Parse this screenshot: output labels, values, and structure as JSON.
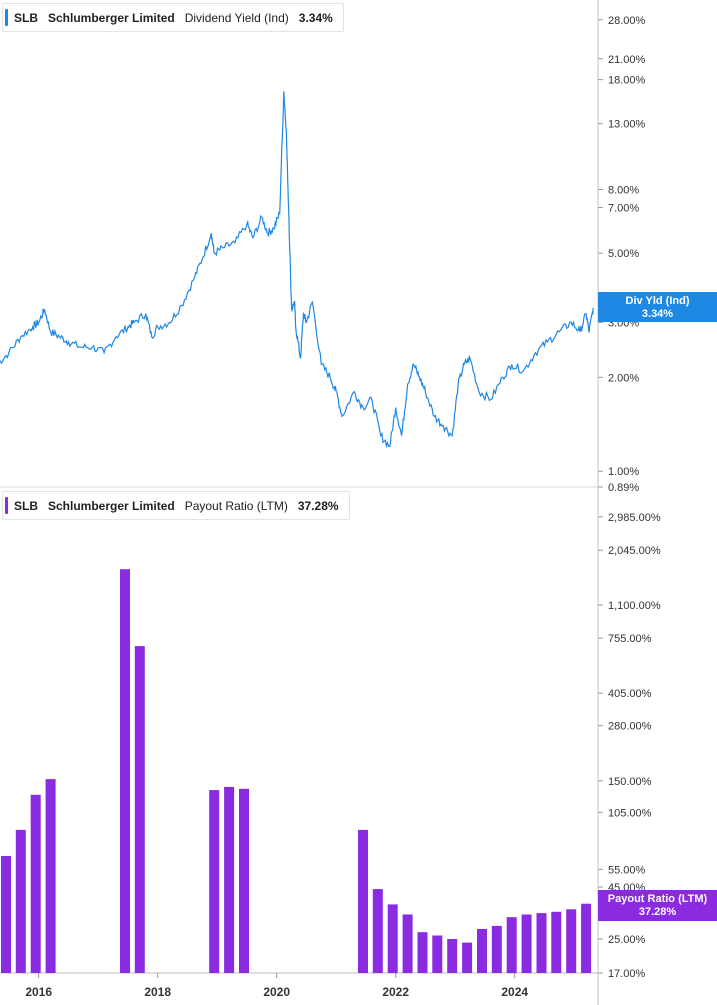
{
  "colors": {
    "yield": "#1e88e5",
    "payout": "#8a2be2"
  },
  "header_top": {
    "ticker": "SLB",
    "company": "Schlumberger Limited",
    "metric": "Dividend Yield (Ind)",
    "value": "3.34%"
  },
  "header_bottom": {
    "ticker": "SLB",
    "company": "Schlumberger Limited",
    "metric": "Payout Ratio (LTM)",
    "value": "37.28%"
  },
  "tag_top": {
    "label": "Div Yld (Ind)",
    "value": "3.34%"
  },
  "tag_bottom": {
    "label": "Payout Ratio (LTM)",
    "value": "37.28%"
  },
  "chart_data": [
    {
      "type": "line",
      "scale": "log",
      "series": [
        {
          "name": "Dividend Yield (Ind)",
          "x": [
            2015.3,
            2015.5,
            2015.7,
            2015.9,
            2016.0,
            2016.1,
            2016.2,
            2016.35,
            2016.5,
            2016.7,
            2016.9,
            2017.1,
            2017.3,
            2017.5,
            2017.6,
            2017.8,
            2017.9,
            2018.0,
            2018.2,
            2018.4,
            2018.6,
            2018.75,
            2018.9,
            2018.95,
            2019.1,
            2019.3,
            2019.5,
            2019.6,
            2019.75,
            2019.85,
            2019.95,
            2020.05,
            2020.12,
            2020.16,
            2020.2,
            2020.25,
            2020.3,
            2020.32,
            2020.4,
            2020.45,
            2020.5,
            2020.6,
            2020.75,
            2020.9,
            2021.0,
            2021.1,
            2021.3,
            2021.45,
            2021.6,
            2021.75,
            2021.9,
            2022.0,
            2022.1,
            2022.2,
            2022.3,
            2022.4,
            2022.5,
            2022.65,
            2022.8,
            2022.95,
            2023.05,
            2023.15,
            2023.25,
            2023.4,
            2023.6,
            2023.8,
            2023.95,
            2024.15,
            2024.35,
            2024.55,
            2024.75,
            2024.95,
            2025.1,
            2025.2,
            2025.25,
            2025.32
          ],
          "values": [
            2.2,
            2.4,
            2.7,
            2.9,
            3.0,
            3.3,
            2.8,
            2.7,
            2.6,
            2.5,
            2.5,
            2.4,
            2.7,
            2.9,
            3.0,
            3.2,
            2.7,
            2.9,
            3.0,
            3.4,
            4.1,
            4.8,
            5.8,
            5.0,
            5.2,
            5.4,
            6.2,
            5.6,
            6.5,
            5.8,
            6.0,
            6.7,
            16.5,
            12.5,
            7.0,
            3.3,
            3.5,
            2.9,
            2.3,
            3.2,
            3.0,
            3.5,
            2.2,
            2.0,
            1.8,
            1.5,
            1.8,
            1.6,
            1.7,
            1.3,
            1.2,
            1.6,
            1.3,
            1.9,
            2.2,
            2.0,
            1.8,
            1.5,
            1.4,
            1.3,
            1.9,
            2.2,
            2.3,
            1.8,
            1.7,
            2.0,
            2.2,
            2.1,
            2.4,
            2.6,
            2.8,
            3.0,
            2.8,
            3.2,
            2.8,
            3.34
          ]
        }
      ],
      "y_ticks": [
        "28.00%",
        "21.00%",
        "18.00%",
        "13.00%",
        "8.00%",
        "7.00%",
        "5.00%",
        "3.00%",
        "2.00%",
        "1.00%",
        "0.89%"
      ],
      "y_tick_values": [
        28,
        21,
        18,
        13,
        8,
        7,
        5,
        3,
        2,
        1,
        0.89
      ],
      "xlim": [
        2015.35,
        2025.4
      ],
      "ylim": [
        0.89,
        31
      ]
    },
    {
      "type": "bar",
      "scale": "log",
      "series": [
        {
          "name": "Payout Ratio (LTM)",
          "x": [
            2015.45,
            2015.7,
            2015.95,
            2016.2,
            2017.45,
            2017.7,
            2018.95,
            2019.2,
            2019.45,
            2021.45,
            2021.7,
            2021.95,
            2022.2,
            2022.45,
            2022.7,
            2022.95,
            2023.2,
            2023.45,
            2023.7,
            2023.95,
            2024.2,
            2024.45,
            2024.7,
            2024.95,
            2025.2
          ],
          "values": [
            64,
            86,
            128,
            153,
            1650,
            690,
            135,
            140,
            137,
            86,
            44,
            37,
            33,
            27,
            26,
            25,
            24,
            28,
            29,
            32,
            33,
            33.5,
            34,
            35,
            37.28
          ]
        }
      ],
      "y_ticks": [
        "2,985.00%",
        "2,045.00%",
        "1,100.00%",
        "755.00%",
        "405.00%",
        "280.00%",
        "150.00%",
        "105.00%",
        "55.00%",
        "45.00%",
        "25.00%",
        "17.00%"
      ],
      "y_tick_values": [
        2985,
        2045,
        1100,
        755,
        405,
        280,
        150,
        105,
        55,
        45,
        25,
        17
      ],
      "xlim": [
        2015.35,
        2025.4
      ],
      "ylim": [
        17,
        3300
      ],
      "x_ticks": [
        "2016",
        "2018",
        "2020",
        "2022",
        "2024"
      ],
      "x_tick_values": [
        2016,
        2018,
        2020,
        2022,
        2024
      ]
    }
  ]
}
